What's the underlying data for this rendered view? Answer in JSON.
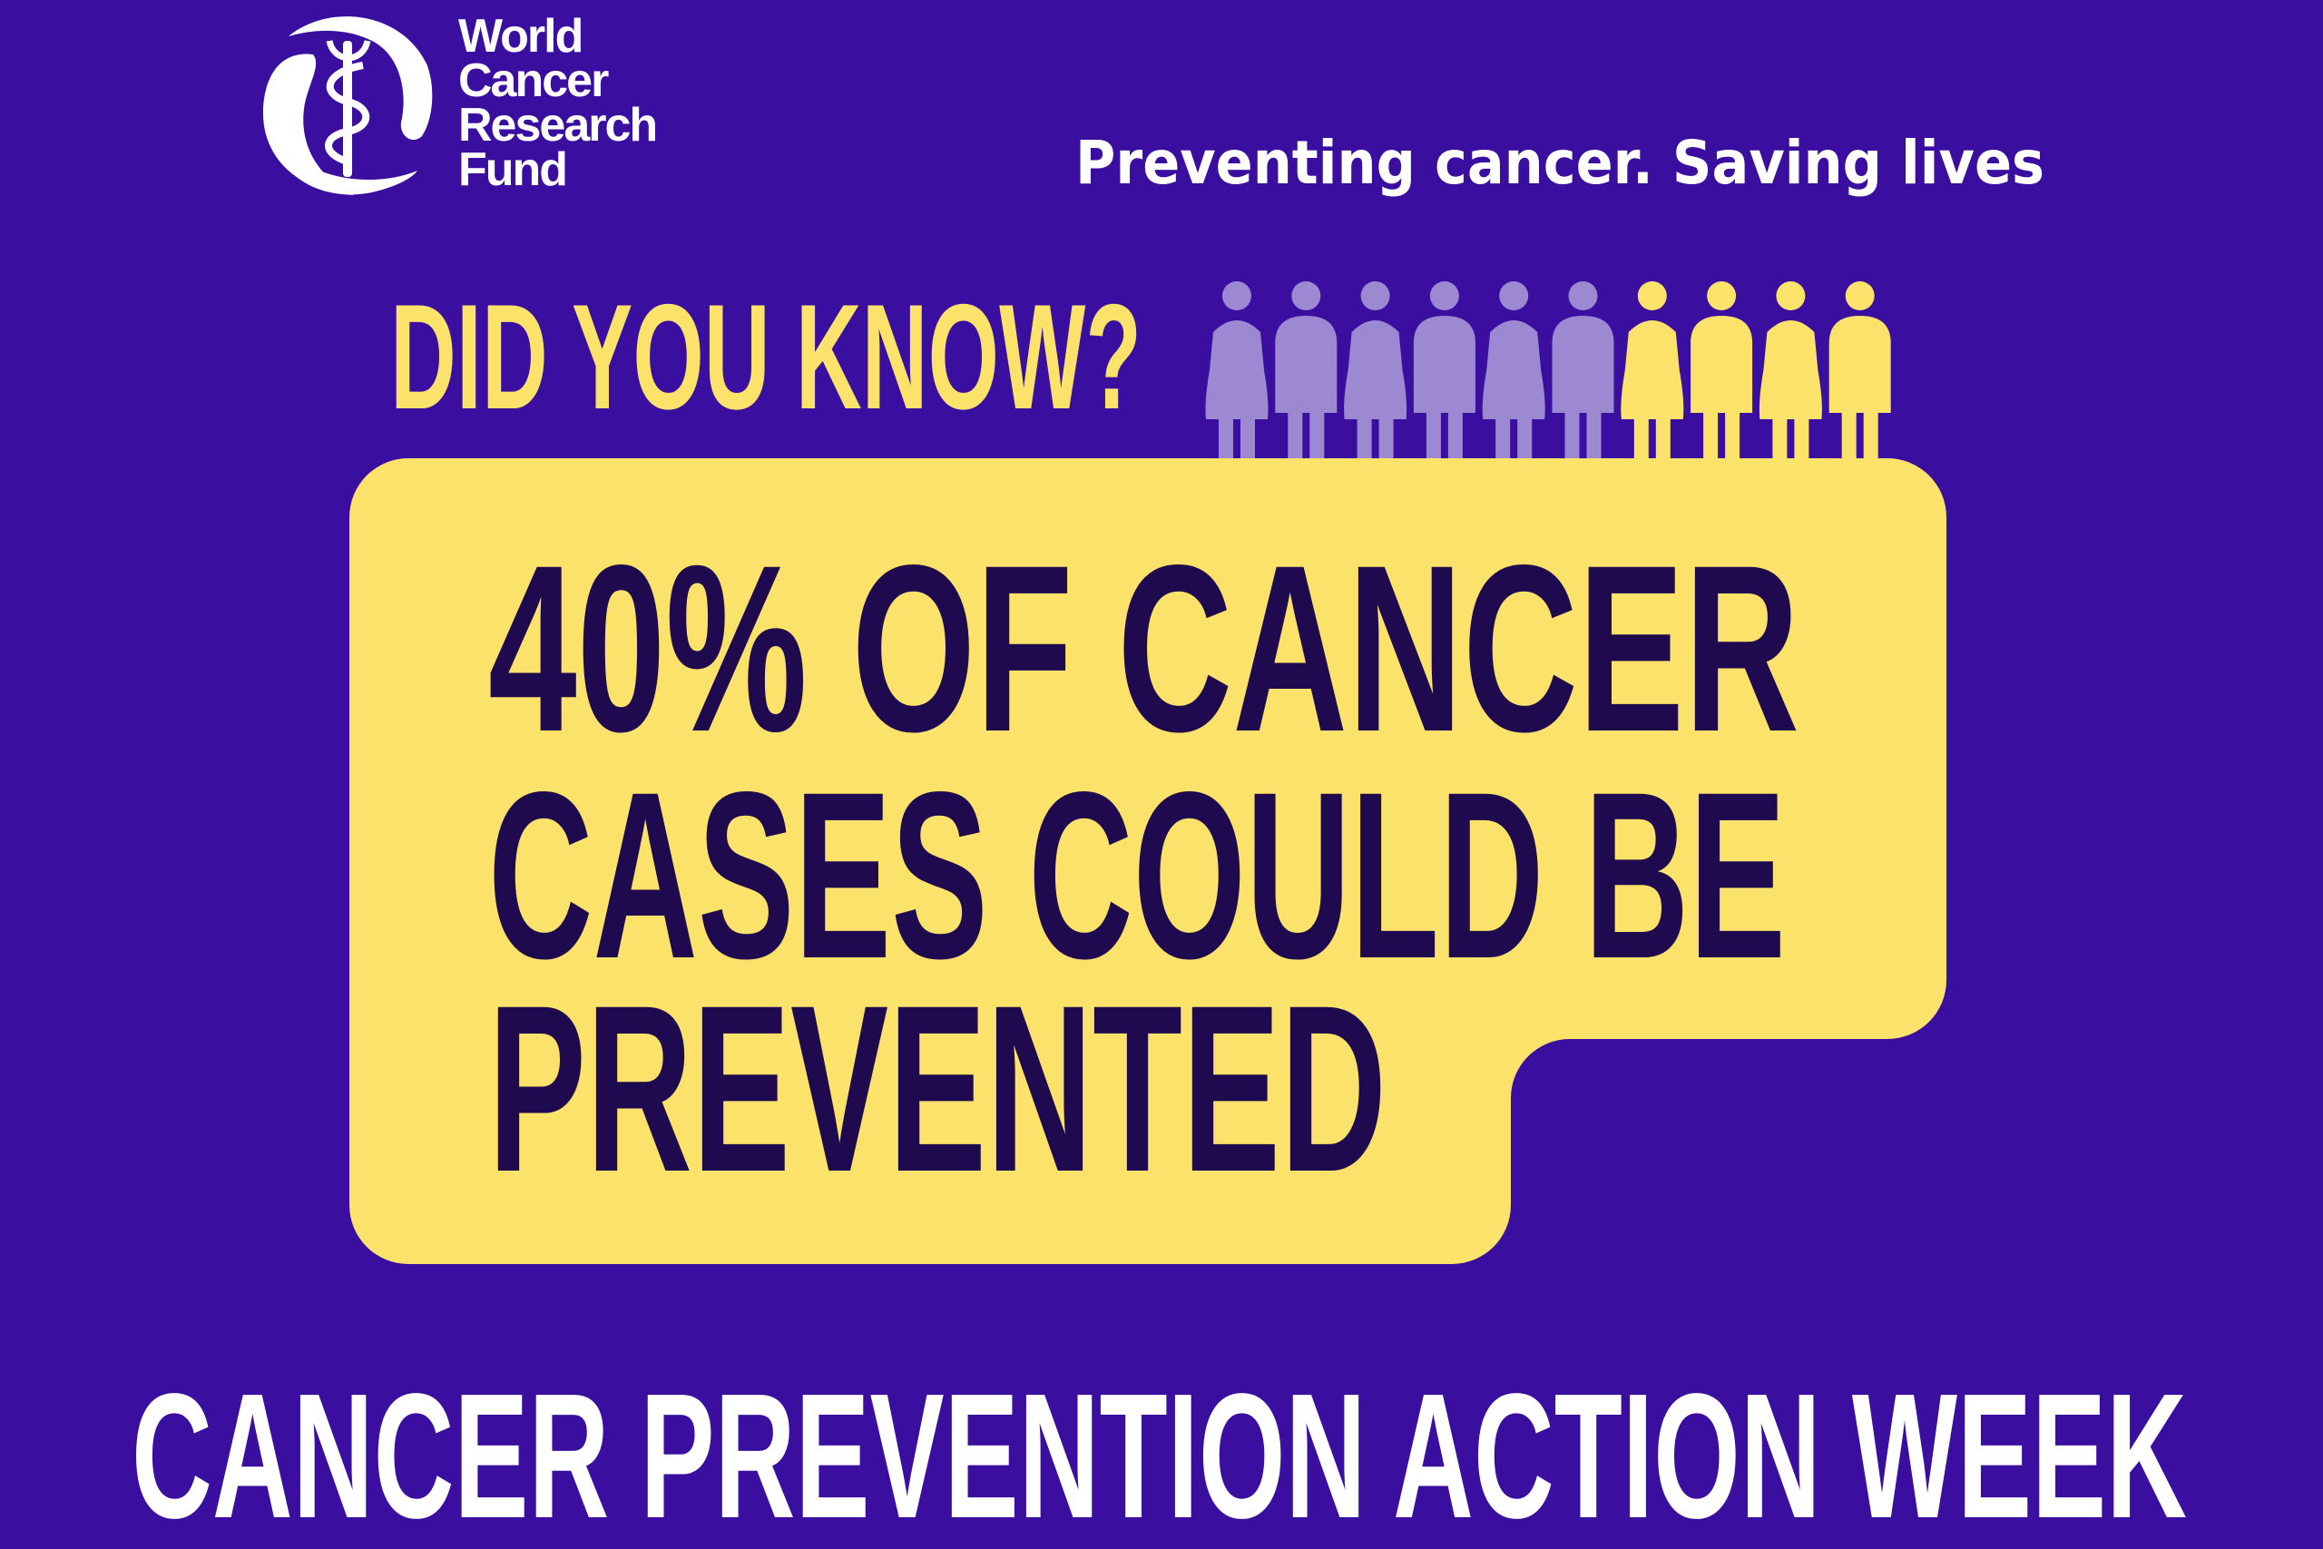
{
  "colors": {
    "background": "#3a0fa0",
    "yellow": "#fbe26a",
    "lavender": "#9d88d2",
    "dark_text": "#1f0a4f",
    "white": "#ffffff"
  },
  "logo": {
    "line1": "World",
    "line2": "Cancer",
    "line3": "Research",
    "line4": "Fund",
    "icon": "caduceus-circle-logo"
  },
  "tagline": "Preventing cancer. Saving lives",
  "did_you_know": "DID YOU KNOW?",
  "people_graphic": {
    "total": 10,
    "highlighted": 4,
    "icon": "person-icon"
  },
  "headline": {
    "line1": "40% OF CANCER",
    "line2": "CASES COULD BE",
    "line3": "PREVENTED"
  },
  "footer_title": "CANCER PREVENTION ACTION WEEK"
}
